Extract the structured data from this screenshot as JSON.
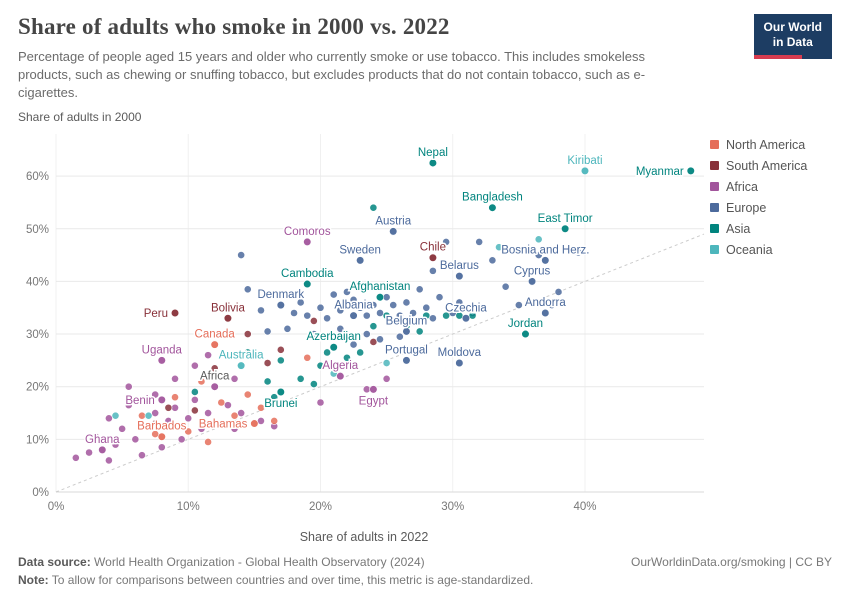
{
  "header": {
    "title": "Share of adults who smoke in 2000 vs. 2022",
    "subtitle": "Percentage of people aged 15 years and older who currently smoke or use tobacco. This includes smokeless products, such as chewing or snuffing tobacco, but excludes products that do not contain tobacco, such as e-cigarettes.",
    "logo": {
      "line1": "Our World",
      "line2": "in Data",
      "bg": "#1d3d63",
      "accent": "#d73c50"
    }
  },
  "legend": {
    "items": [
      {
        "label": "North America",
        "color": "#E56E5A"
      },
      {
        "label": "South America",
        "color": "#883039"
      },
      {
        "label": "Africa",
        "color": "#A2559C"
      },
      {
        "label": "Europe",
        "color": "#4C6A9C"
      },
      {
        "label": "Asia",
        "color": "#00847E"
      },
      {
        "label": "Oceania",
        "color": "#4DB6BC"
      }
    ]
  },
  "footer": {
    "datasource_label": "Data source:",
    "datasource": " World Health Organization - Global Health Observatory (2024)",
    "link": "OurWorldinData.org/smoking | CC BY",
    "note_label": "Note:",
    "note": " To allow for comparisons between countries and over time, this metric is age-standardized."
  },
  "chart_data": {
    "type": "scatter",
    "title": "Share of adults who smoke in 2000 vs. 2022",
    "xlabel": "Share of adults in 2022",
    "ylabel": "Share of adults in 2000",
    "xlim": [
      0,
      49
    ],
    "ylim": [
      0,
      68
    ],
    "xticks": [
      0,
      10,
      20,
      30,
      40
    ],
    "yticks": [
      0,
      10,
      20,
      30,
      40,
      50,
      60
    ],
    "tick_suffix": "%",
    "grid": true,
    "identity_line": true,
    "legend_position": "right",
    "region_colors": {
      "North America": "#E56E5A",
      "South America": "#883039",
      "Africa": "#A2559C",
      "Europe": "#4C6A9C",
      "Asia": "#00847E",
      "Oceania": "#4DB6BC"
    },
    "labeled_points": [
      {
        "label": "Nepal",
        "x": 28.5,
        "y": 62.5,
        "region": "Asia"
      },
      {
        "label": "Kiribati",
        "x": 40,
        "y": 61,
        "region": "Oceania"
      },
      {
        "label": "Myanmar",
        "x": 48,
        "y": 61,
        "region": "Asia",
        "label_pos": "left"
      },
      {
        "label": "Bangladesh",
        "x": 33,
        "y": 54,
        "region": "Asia"
      },
      {
        "label": "East Timor",
        "x": 38.5,
        "y": 50,
        "region": "Asia"
      },
      {
        "label": "Austria",
        "x": 25.5,
        "y": 49.5,
        "region": "Europe"
      },
      {
        "label": "Comoros",
        "x": 19,
        "y": 47.5,
        "region": "Africa"
      },
      {
        "label": "Chile",
        "x": 28.5,
        "y": 44.5,
        "region": "South America"
      },
      {
        "label": "Sweden",
        "x": 23,
        "y": 44,
        "region": "Europe"
      },
      {
        "label": "Bosnia and Herz.",
        "x": 37,
        "y": 44,
        "region": "Europe"
      },
      {
        "label": "Belarus",
        "x": 30.5,
        "y": 41,
        "region": "Europe"
      },
      {
        "label": "Cyprus",
        "x": 36,
        "y": 40,
        "region": "Europe"
      },
      {
        "label": "Cambodia",
        "x": 19,
        "y": 39.5,
        "region": "Asia"
      },
      {
        "label": "Afghanistan",
        "x": 24.5,
        "y": 37,
        "region": "Asia"
      },
      {
        "label": "Denmark",
        "x": 17,
        "y": 35.5,
        "region": "Europe"
      },
      {
        "label": "Albania",
        "x": 22.5,
        "y": 33.5,
        "region": "Europe"
      },
      {
        "label": "Peru",
        "x": 9,
        "y": 34,
        "region": "South America",
        "label_pos": "left"
      },
      {
        "label": "Bolivia",
        "x": 13,
        "y": 33,
        "region": "South America"
      },
      {
        "label": "Andorra",
        "x": 37,
        "y": 34,
        "region": "Europe"
      },
      {
        "label": "Czechia",
        "x": 31,
        "y": 33,
        "region": "Europe"
      },
      {
        "label": "Belgium",
        "x": 26.5,
        "y": 30.5,
        "region": "Europe"
      },
      {
        "label": "Jordan",
        "x": 35.5,
        "y": 30,
        "region": "Asia"
      },
      {
        "label": "Canada",
        "x": 12,
        "y": 28,
        "region": "North America"
      },
      {
        "label": "Azerbaijan",
        "x": 21,
        "y": 27.5,
        "region": "Asia"
      },
      {
        "label": "Portugal",
        "x": 26.5,
        "y": 25,
        "region": "Europe"
      },
      {
        "label": "Moldova",
        "x": 30.5,
        "y": 24.5,
        "region": "Europe"
      },
      {
        "label": "Uganda",
        "x": 8,
        "y": 25,
        "region": "Africa"
      },
      {
        "label": "Australia",
        "x": 14,
        "y": 24,
        "region": "Oceania"
      },
      {
        "label": "Algeria",
        "x": 21.5,
        "y": 22,
        "region": "Africa"
      },
      {
        "label": "Africa",
        "x": 12,
        "y": 20,
        "region": "Africa",
        "label_color": "#5b5b5b"
      },
      {
        "label": "Brunei",
        "x": 17,
        "y": 19,
        "region": "Asia",
        "label_pos": "below"
      },
      {
        "label": "Egypt",
        "x": 24,
        "y": 19.5,
        "region": "Africa",
        "label_pos": "below"
      },
      {
        "label": "Benin",
        "x": 8,
        "y": 17.5,
        "region": "Africa",
        "label_pos": "left"
      },
      {
        "label": "Bahamas",
        "x": 15,
        "y": 13,
        "region": "North America",
        "label_pos": "left"
      },
      {
        "label": "Barbados",
        "x": 8,
        "y": 10.5,
        "region": "North America"
      },
      {
        "label": "Ghana",
        "x": 3.5,
        "y": 8,
        "region": "Africa"
      }
    ],
    "unlabeled_points": {
      "Africa": [
        [
          1.5,
          6.5
        ],
        [
          2.5,
          7.5
        ],
        [
          3,
          10.5
        ],
        [
          4,
          6
        ],
        [
          4,
          14
        ],
        [
          4.5,
          9
        ],
        [
          5,
          12
        ],
        [
          5.5,
          16.5
        ],
        [
          5.5,
          20
        ],
        [
          6,
          10
        ],
        [
          6.5,
          7
        ],
        [
          7,
          12.5
        ],
        [
          7.5,
          15
        ],
        [
          7.5,
          18.5
        ],
        [
          8,
          8.5
        ],
        [
          8.5,
          13.5
        ],
        [
          9,
          16
        ],
        [
          9,
          21.5
        ],
        [
          9.5,
          10
        ],
        [
          10,
          14
        ],
        [
          10.5,
          17.5
        ],
        [
          10.5,
          24
        ],
        [
          11,
          12
        ],
        [
          11.5,
          15
        ],
        [
          11.5,
          26
        ],
        [
          12.5,
          13
        ],
        [
          13,
          16.5
        ],
        [
          13.5,
          12
        ],
        [
          13.5,
          21.5
        ],
        [
          14,
          15
        ],
        [
          15.5,
          13.5
        ],
        [
          16.5,
          12.5
        ],
        [
          20,
          17
        ],
        [
          23.5,
          19.5
        ],
        [
          25,
          21.5
        ]
      ],
      "North America": [
        [
          6.5,
          14.5
        ],
        [
          7.5,
          11
        ],
        [
          9,
          18
        ],
        [
          10,
          11.5
        ],
        [
          11,
          21
        ],
        [
          11.5,
          9.5
        ],
        [
          12.5,
          17
        ],
        [
          13.5,
          14.5
        ],
        [
          14.5,
          18.5
        ],
        [
          15.5,
          16
        ],
        [
          16.5,
          13.5
        ],
        [
          19,
          25.5
        ]
      ],
      "South America": [
        [
          7.5,
          13
        ],
        [
          8.5,
          16
        ],
        [
          9.5,
          12.5
        ],
        [
          10.5,
          15.5
        ],
        [
          12,
          23.5
        ],
        [
          13,
          26
        ],
        [
          14.5,
          30
        ],
        [
          16,
          24.5
        ],
        [
          17,
          27
        ],
        [
          19.5,
          32.5
        ],
        [
          21.5,
          29.5
        ],
        [
          24,
          28.5
        ]
      ],
      "Europe": [
        [
          14,
          45
        ],
        [
          14.5,
          38.5
        ],
        [
          15.5,
          34.5
        ],
        [
          16,
          30.5
        ],
        [
          17.5,
          31
        ],
        [
          18,
          34
        ],
        [
          18.5,
          36
        ],
        [
          19,
          33.5
        ],
        [
          19.5,
          30
        ],
        [
          20,
          35
        ],
        [
          20.5,
          33
        ],
        [
          21,
          37.5
        ],
        [
          21.5,
          34.5
        ],
        [
          21.5,
          31
        ],
        [
          22,
          38
        ],
        [
          22.5,
          36.5
        ],
        [
          22.5,
          28
        ],
        [
          23,
          35
        ],
        [
          23.5,
          33.5
        ],
        [
          23.5,
          30
        ],
        [
          24,
          35.5
        ],
        [
          24.5,
          34
        ],
        [
          24.5,
          29
        ],
        [
          24.5,
          51.5
        ],
        [
          25,
          37
        ],
        [
          25.5,
          35.5
        ],
        [
          26,
          33.5
        ],
        [
          26,
          29.5
        ],
        [
          26.5,
          36
        ],
        [
          27,
          34
        ],
        [
          27.5,
          38.5
        ],
        [
          28,
          35
        ],
        [
          28.5,
          33
        ],
        [
          28.5,
          42
        ],
        [
          29,
          37
        ],
        [
          29.5,
          47.5
        ],
        [
          30,
          34
        ],
        [
          30.5,
          36
        ],
        [
          31.5,
          34
        ],
        [
          32,
          47.5
        ],
        [
          33,
          44
        ],
        [
          34,
          39
        ],
        [
          35,
          35.5
        ],
        [
          36.5,
          45
        ],
        [
          37.5,
          35.5
        ],
        [
          38,
          38
        ],
        [
          39.5,
          45.5
        ]
      ],
      "Asia": [
        [
          10.5,
          19
        ],
        [
          14.5,
          26.5
        ],
        [
          16,
          21
        ],
        [
          16.5,
          18
        ],
        [
          17,
          25
        ],
        [
          18.5,
          21.5
        ],
        [
          19.5,
          20.5
        ],
        [
          20,
          24
        ],
        [
          20.5,
          26.5
        ],
        [
          21,
          23.5
        ],
        [
          22,
          25.5
        ],
        [
          23,
          26.5
        ],
        [
          24,
          31.5
        ],
        [
          24,
          54
        ],
        [
          25,
          33.5
        ],
        [
          26.5,
          31.5
        ],
        [
          27.5,
          30.5
        ],
        [
          28,
          33.5
        ],
        [
          29.5,
          33.5
        ],
        [
          30.5,
          33.5
        ],
        [
          31.5,
          33.5
        ]
      ],
      "Oceania": [
        [
          4.5,
          14.5
        ],
        [
          7,
          14.5
        ],
        [
          21,
          22.5
        ],
        [
          22.5,
          24
        ],
        [
          25,
          24.5
        ],
        [
          31.5,
          34.5
        ],
        [
          33.5,
          46.5
        ],
        [
          36.5,
          48
        ]
      ]
    }
  }
}
